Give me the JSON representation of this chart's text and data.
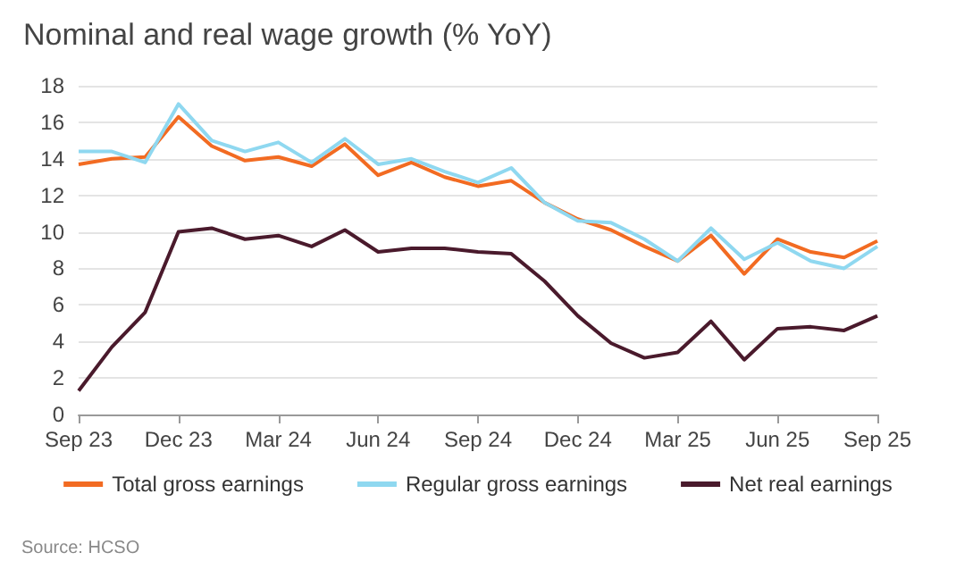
{
  "chart_data": {
    "type": "line",
    "title": "Nominal and real wage growth (% YoY)",
    "categories": [
      "Sep 23",
      null,
      null,
      "Dec 23",
      null,
      null,
      "Mar 24",
      null,
      null,
      "Jun 24",
      null,
      null,
      "Sep 24",
      null,
      null,
      "Dec 24",
      null,
      null,
      "Mar 25",
      null,
      null,
      "Jun 25",
      null,
      null,
      "Sep 25"
    ],
    "series": [
      {
        "name": "Total gross earnings",
        "color": "#f26b22",
        "values": [
          13.7,
          14.0,
          14.1,
          16.3,
          14.7,
          13.9,
          14.1,
          13.6,
          14.8,
          13.1,
          13.8,
          13.0,
          12.5,
          12.8,
          11.6,
          10.7,
          10.1,
          9.2,
          8.4,
          9.8,
          7.7,
          9.6,
          8.9,
          8.6,
          9.5
        ]
      },
      {
        "name": "Regular gross earnings",
        "color": "#8fd8f0",
        "values": [
          14.4,
          14.4,
          13.8,
          17.0,
          15.0,
          14.4,
          14.9,
          13.8,
          15.1,
          13.7,
          14.0,
          13.3,
          12.7,
          13.5,
          11.6,
          10.6,
          10.5,
          9.6,
          8.4,
          10.2,
          8.5,
          9.4,
          8.4,
          8.0,
          9.2
        ]
      },
      {
        "name": "Net real earnings",
        "color": "#4a1a2c",
        "values": [
          1.3,
          3.7,
          5.6,
          10.0,
          10.2,
          9.6,
          9.8,
          9.2,
          10.1,
          8.9,
          9.1,
          9.1,
          8.9,
          8.8,
          7.3,
          5.4,
          3.9,
          3.1,
          3.4,
          5.1,
          3.0,
          4.7,
          4.8,
          4.6,
          5.4
        ]
      }
    ],
    "ylim": [
      0,
      18
    ],
    "yticks": [
      0,
      2,
      4,
      6,
      8,
      10,
      12,
      14,
      16,
      18
    ],
    "grid": "y",
    "legend": "bottom",
    "marker": "none",
    "line_style": "solid",
    "annotations": [
      "Source: HCSO"
    ]
  }
}
